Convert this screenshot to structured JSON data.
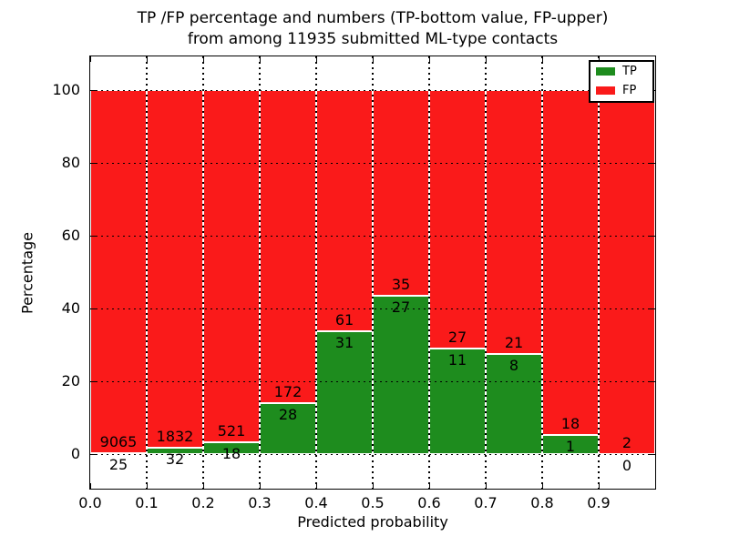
{
  "figure": {
    "title_line1": "TP /FP percentage and numbers (TP-bottom value, FP-upper)",
    "title_line2": "from among 11935 submitted ML-type contacts"
  },
  "axes": {
    "xlabel": "Predicted probability",
    "ylabel": "Percentage",
    "xtick_labels": [
      "0.0",
      "0.1",
      "0.2",
      "0.3",
      "0.4",
      "0.5",
      "0.6",
      "0.7",
      "0.8",
      "0.9"
    ],
    "ytick_labels": [
      "0",
      "20",
      "40",
      "60",
      "80",
      "100"
    ]
  },
  "legend": {
    "items": [
      {
        "label": "TP",
        "color": "#1e8c1e"
      },
      {
        "label": "FP",
        "color": "#fa1a1a"
      }
    ]
  },
  "chart_data": {
    "type": "bar",
    "stacked": true,
    "normalization": "each 0.1-wide probability bin stacked to 100%",
    "title": "TP /FP percentage and numbers (TP-bottom value, FP-upper) from among 11935 submitted ML-type contacts",
    "xlabel": "Predicted probability",
    "ylabel": "Percentage",
    "total_contacts": 11935,
    "bin_edges": [
      0.0,
      0.1,
      0.2,
      0.3,
      0.4,
      0.5,
      0.6,
      0.7,
      0.8,
      0.9,
      1.0
    ],
    "categories": [
      "0.0-0.1",
      "0.1-0.2",
      "0.2-0.3",
      "0.3-0.4",
      "0.4-0.5",
      "0.5-0.6",
      "0.6-0.7",
      "0.7-0.8",
      "0.8-0.9",
      "0.9-1.0"
    ],
    "series": [
      {
        "name": "TP",
        "color": "#1e8c1e",
        "counts": [
          25,
          32,
          18,
          28,
          31,
          27,
          11,
          8,
          1,
          0
        ]
      },
      {
        "name": "FP",
        "color": "#fa1a1a",
        "counts": [
          9065,
          1832,
          521,
          172,
          61,
          35,
          27,
          21,
          18,
          2
        ]
      }
    ],
    "tp_percent_by_bin": [
      0.28,
      1.72,
      3.34,
      14.0,
      33.7,
      43.55,
      28.95,
      27.59,
      5.26,
      0.0
    ],
    "xlim": [
      0.0,
      1.0
    ],
    "ylim": [
      -10,
      110
    ],
    "ytick_values": [
      0,
      20,
      40,
      60,
      80,
      100
    ],
    "xtick_values": [
      0.0,
      0.1,
      0.2,
      0.3,
      0.4,
      0.5,
      0.6,
      0.7,
      0.8,
      0.9
    ],
    "grid": "dotted, both axes",
    "legend_position": "upper right"
  }
}
